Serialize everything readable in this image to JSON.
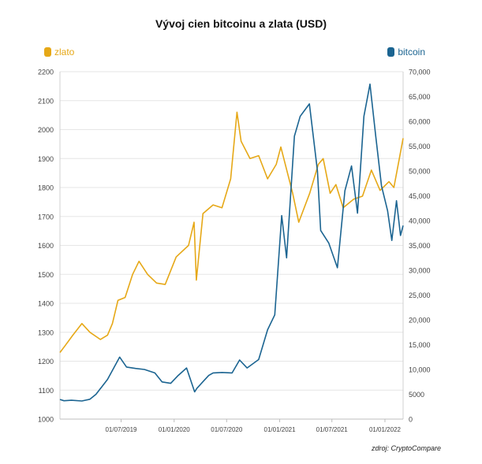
{
  "chart_data": {
    "type": "line",
    "title": "Vývoj cien bitcoinu a zlata (USD)",
    "source": "zdroj: CryptoCompare",
    "x_range": [
      "2018-12-01",
      "2022-03-05"
    ],
    "x_ticks": [
      "2019-07-01",
      "2020-01-01",
      "2020-07-01",
      "2021-01-01",
      "2021-07-01",
      "2022-01-01"
    ],
    "x_tick_labels": [
      "01/07/2019",
      "01/01/2020",
      "01/07/2020",
      "01/01/2021",
      "01/07/2021",
      "01/01/2022"
    ],
    "y_left": {
      "min": 1000,
      "max": 2200,
      "ticks": [
        1000,
        1100,
        1200,
        1300,
        1400,
        1500,
        1600,
        1700,
        1800,
        1900,
        2000,
        2100,
        2200
      ],
      "tick_labels": [
        "1000",
        "1100",
        "1200",
        "1300",
        "1400",
        "1500",
        "1600",
        "1700",
        "1800",
        "1900",
        "2000",
        "2100",
        "2200"
      ]
    },
    "y_right": {
      "min": 0,
      "max": 70000,
      "ticks": [
        0,
        5000,
        10000,
        15000,
        20000,
        25000,
        30000,
        35000,
        40000,
        45000,
        50000,
        55000,
        60000,
        65000,
        70000
      ],
      "tick_labels": [
        "0",
        "5000",
        "10,000",
        "15,000",
        "20,000",
        "25,000",
        "30,000",
        "35,000",
        "40,000",
        "45,000",
        "50,000",
        "55,000",
        "60,000",
        "65,000",
        "70,000"
      ]
    },
    "grid": true,
    "legend_placement": "top",
    "series": [
      {
        "name": "zlato",
        "axis": "left",
        "color": "#E6A817",
        "x": [
          "2018-12-01",
          "2018-12-20",
          "2019-01-15",
          "2019-02-15",
          "2019-03-15",
          "2019-04-20",
          "2019-05-15",
          "2019-06-01",
          "2019-06-20",
          "2019-07-15",
          "2019-08-10",
          "2019-09-01",
          "2019-10-01",
          "2019-11-01",
          "2019-12-01",
          "2020-01-08",
          "2020-02-20",
          "2020-03-10",
          "2020-03-18",
          "2020-04-10",
          "2020-05-15",
          "2020-06-15",
          "2020-07-15",
          "2020-08-06",
          "2020-08-20",
          "2020-09-20",
          "2020-10-20",
          "2020-11-20",
          "2020-12-20",
          "2021-01-05",
          "2021-02-15",
          "2021-03-08",
          "2021-04-15",
          "2021-05-15",
          "2021-06-01",
          "2021-06-25",
          "2021-07-15",
          "2021-08-09",
          "2021-09-15",
          "2021-10-15",
          "2021-11-15",
          "2021-12-15",
          "2022-01-15",
          "2022-02-01",
          "2022-02-20",
          "2022-03-05"
        ],
        "y": [
          1230,
          1255,
          1290,
          1330,
          1300,
          1275,
          1290,
          1330,
          1410,
          1420,
          1500,
          1545,
          1500,
          1470,
          1465,
          1560,
          1600,
          1680,
          1480,
          1710,
          1740,
          1730,
          1830,
          2060,
          1960,
          1900,
          1910,
          1830,
          1880,
          1940,
          1780,
          1680,
          1780,
          1880,
          1900,
          1780,
          1810,
          1730,
          1760,
          1770,
          1860,
          1790,
          1820,
          1800,
          1900,
          1970
        ]
      },
      {
        "name": "bitcoin",
        "axis": "right",
        "color": "#1B6491",
        "x": [
          "2018-12-01",
          "2018-12-15",
          "2019-01-10",
          "2019-02-15",
          "2019-03-15",
          "2019-04-05",
          "2019-05-15",
          "2019-06-26",
          "2019-07-20",
          "2019-08-20",
          "2019-09-20",
          "2019-10-26",
          "2019-11-20",
          "2019-12-20",
          "2020-01-15",
          "2020-02-13",
          "2020-03-12",
          "2020-03-20",
          "2020-04-30",
          "2020-05-15",
          "2020-06-15",
          "2020-07-20",
          "2020-08-15",
          "2020-09-10",
          "2020-10-20",
          "2020-11-20",
          "2020-12-15",
          "2021-01-08",
          "2021-01-25",
          "2021-02-21",
          "2021-03-13",
          "2021-04-14",
          "2021-05-12",
          "2021-05-23",
          "2021-06-20",
          "2021-07-20",
          "2021-08-15",
          "2021-09-07",
          "2021-09-28",
          "2021-10-20",
          "2021-11-10",
          "2021-11-30",
          "2021-12-20",
          "2022-01-10",
          "2022-01-25",
          "2022-02-10",
          "2022-02-24",
          "2022-03-05"
        ],
        "y": [
          3950,
          3700,
          3800,
          3650,
          4000,
          5000,
          8000,
          12500,
          10500,
          10200,
          10000,
          9300,
          7500,
          7200,
          8800,
          10300,
          5500,
          6200,
          8800,
          9300,
          9400,
          9300,
          11900,
          10300,
          12000,
          18000,
          21000,
          41000,
          32500,
          57000,
          61000,
          63500,
          50000,
          38000,
          35500,
          30500,
          46000,
          51000,
          41500,
          61000,
          67500,
          57000,
          47000,
          42000,
          36000,
          44000,
          37000,
          39000
        ]
      }
    ]
  },
  "labels": {
    "legend_gold": "zlato",
    "legend_btc": "bitcoin"
  }
}
